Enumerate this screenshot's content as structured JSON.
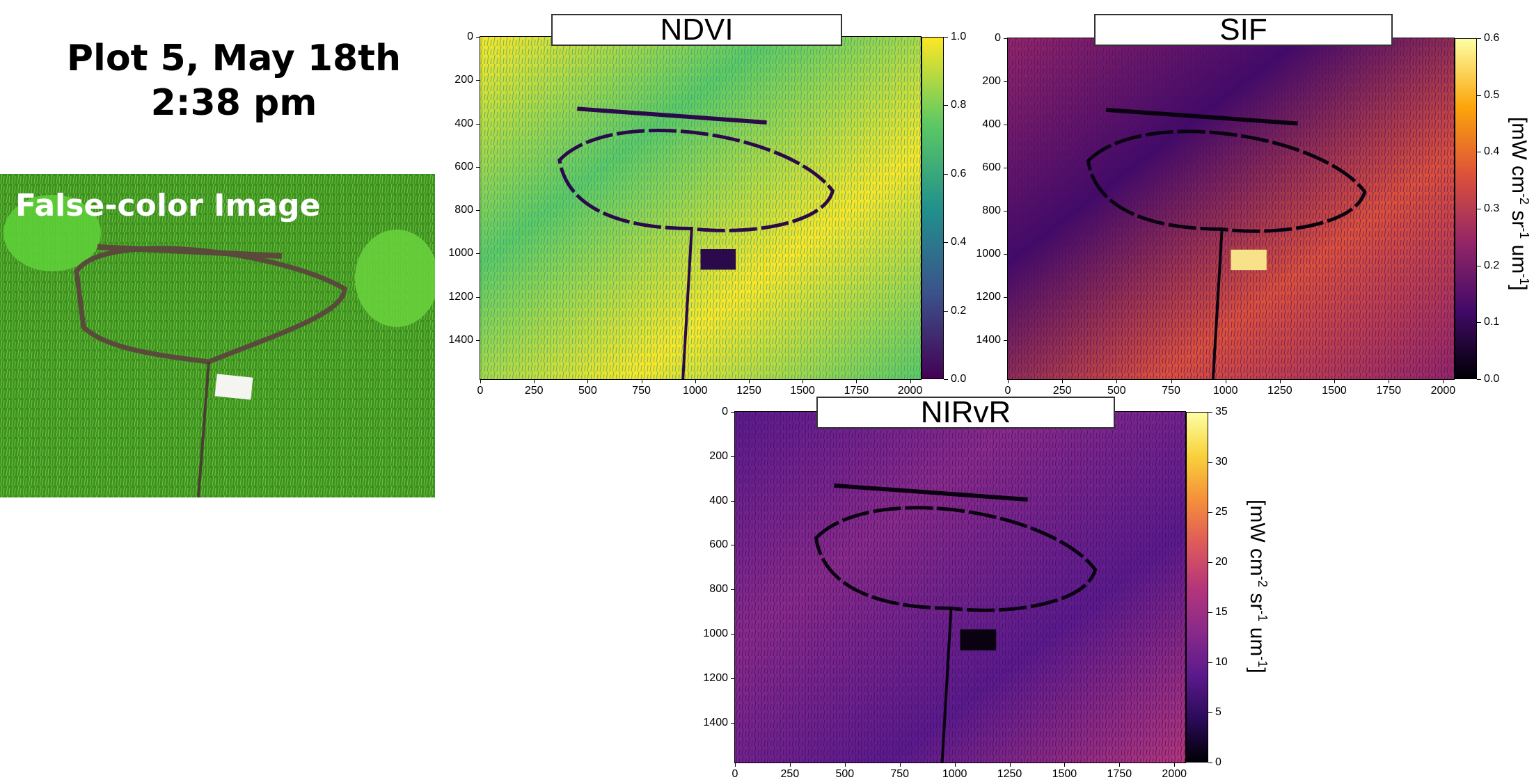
{
  "title": {
    "line1": "Plot 5, May 18th",
    "line2": "2:38 pm"
  },
  "photo": {
    "label": "False-color Image"
  },
  "panels": [
    {
      "id": "ndvi",
      "title": "NDVI",
      "x_ticks": [
        "0",
        "250",
        "500",
        "750",
        "1000",
        "1250",
        "1500",
        "1750",
        "2000"
      ],
      "y_ticks": [
        "0",
        "200",
        "400",
        "600",
        "800",
        "1000",
        "1200",
        "1400"
      ],
      "colorbar_ticks": [
        "0.0",
        "0.2",
        "0.4",
        "0.6",
        "0.8",
        "1.0"
      ],
      "colormap": "viridis",
      "unit_label": ""
    },
    {
      "id": "sif",
      "title": "SIF",
      "x_ticks": [
        "0",
        "250",
        "500",
        "750",
        "1000",
        "1250",
        "1500",
        "1750",
        "2000"
      ],
      "y_ticks": [
        "0",
        "200",
        "400",
        "600",
        "800",
        "1000",
        "1200",
        "1400"
      ],
      "colorbar_ticks": [
        "0.0",
        "0.1",
        "0.2",
        "0.3",
        "0.4",
        "0.5",
        "0.6"
      ],
      "colormap": "inferno",
      "unit_label": {
        "prefix": "[mW cm",
        "exp1": "-2",
        "mid": " sr",
        "exp2": "-1",
        "mid2": " um",
        "exp3": "-1",
        "suffix": "]"
      }
    },
    {
      "id": "nirvr",
      "title": "NIRvR",
      "x_ticks": [
        "0",
        "250",
        "500",
        "750",
        "1000",
        "1250",
        "1500",
        "1750",
        "2000"
      ],
      "y_ticks": [
        "0",
        "200",
        "400",
        "600",
        "800",
        "1000",
        "1200",
        "1400"
      ],
      "colorbar_ticks": [
        "0",
        "5",
        "10",
        "15",
        "20",
        "25",
        "30",
        "35"
      ],
      "colormap": "plasma",
      "unit_label": {
        "prefix": "[mW cm",
        "exp1": "-2",
        "mid": " sr",
        "exp2": "-1",
        "mid2": " um",
        "exp3": "-1",
        "suffix": "]"
      }
    }
  ],
  "colors": {
    "viridis": [
      "#440154",
      "#3b528b",
      "#21918c",
      "#5ec962",
      "#fde725"
    ],
    "inferno": [
      "#000004",
      "#420a68",
      "#932667",
      "#dd513a",
      "#fca50a",
      "#fcffa4"
    ],
    "plasma_dark": [
      "#000004",
      "#2c0b5a",
      "#5c1a8c",
      "#8a2a8a",
      "#b5367a",
      "#dd5a5a",
      "#f68f3a",
      "#f8d13a",
      "#fcffa4"
    ]
  }
}
